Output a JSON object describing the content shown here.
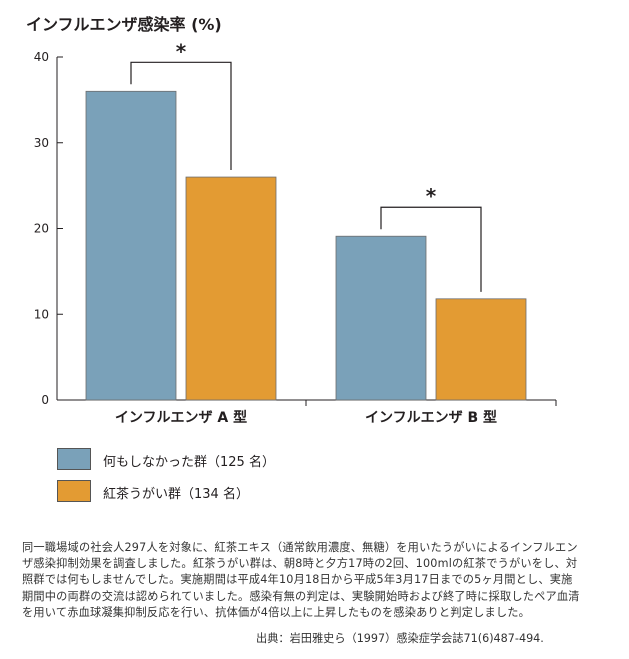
{
  "chart_data": {
    "type": "bar",
    "title": "インフルエンザ感染率 (%)",
    "ylabel": "インフルエンザ感染率 (%)",
    "ylim": [
      0,
      40
    ],
    "yticks": [
      "0",
      "10",
      "20",
      "30",
      "40"
    ],
    "categories": [
      "インフルエンザ A 型",
      "インフルエンザ B 型"
    ],
    "series": [
      {
        "name": "何もしなかった群（125 名）",
        "color": "#7aa1b9",
        "values": [
          36,
          19.1
        ]
      },
      {
        "name": "紅茶うがい群（134 名）",
        "color": "#e39b33",
        "values": [
          26,
          11.8
        ]
      }
    ],
    "annotations": [
      {
        "label": "*",
        "category": 0,
        "meaning": "significance bracket"
      },
      {
        "label": "*",
        "category": 1,
        "meaning": "significance bracket"
      }
    ]
  },
  "note": "同一職場域の社会人297人を対象に、紅茶エキス（通常飲用濃度、無糖）を用いたうがいによるインフルエンザ感染抑制効果を調査しました。紅茶うがい群は、朝8時と夕方17時の2回、100mlの紅茶でうがいをし、対照群では何もしませんでした。実施期間は平成4年10月18日から平成5年3月17日までの5ヶ月間とし、実施期間中の両群の交流は認められていました。感染有無の判定は、実験開始時および終了時に採取したペア血清を用いて赤血球凝集抑制反応を行い、抗体価が4倍以上に上昇したものを感染ありと判定しました。",
  "source": "出典：岩田雅史ら（1997）感染症学会誌71(6)487-494."
}
